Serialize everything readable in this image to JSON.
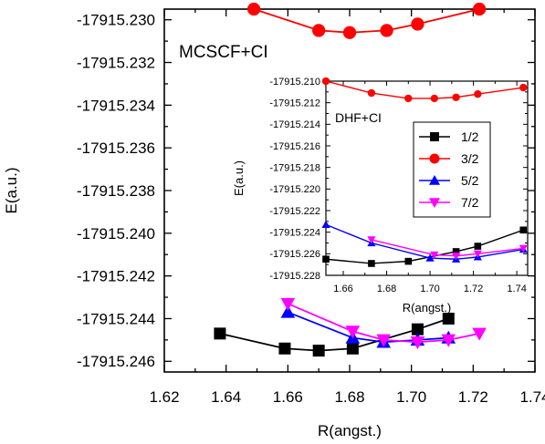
{
  "chart_data": [
    {
      "type": "line",
      "annotation": "MCSCF+CI",
      "xlabel": "R(angst.)",
      "ylabel": "E(a.u.)",
      "xlim": [
        1.62,
        1.74
      ],
      "ylim": [
        -17915.2465,
        -17915.2295
      ],
      "xticks": [
        1.62,
        1.64,
        1.66,
        1.68,
        1.7,
        1.72,
        1.74
      ],
      "xtick_labels": [
        "1.62",
        "1.64",
        "1.66",
        "1.68",
        "1.70",
        "1.72",
        "1.74"
      ],
      "yticks": [
        -17915.23,
        -17915.232,
        -17915.234,
        -17915.236,
        -17915.238,
        -17915.24,
        -17915.242,
        -17915.244,
        -17915.246
      ],
      "ytick_labels": [
        "-17915.230",
        "-17915.232",
        "-17915.234",
        "-17915.236",
        "-17915.238",
        "-17915.240",
        "-17915.242",
        "-17915.244",
        "-17915.246"
      ],
      "grid": false,
      "series": [
        {
          "name": "1/2",
          "color": "#000000",
          "marker": "square",
          "x": [
            1.638,
            1.659,
            1.67,
            1.681,
            1.702,
            1.712
          ],
          "y": [
            -17915.2447,
            -17915.2454,
            -17915.2455,
            -17915.2454,
            -17915.2445,
            -17915.244
          ]
        },
        {
          "name": "3/2",
          "color": "#ff0000",
          "marker": "circle",
          "x": [
            1.649,
            1.67,
            1.68,
            1.692,
            1.702,
            1.722
          ],
          "y": [
            -17915.2295,
            -17915.2305,
            -17915.2306,
            -17915.2305,
            -17915.2302,
            -17915.2295
          ]
        },
        {
          "name": "5/2",
          "color": "#0000ff",
          "marker": "triangle-up",
          "x": [
            1.66,
            1.681,
            1.691,
            1.702,
            1.712
          ],
          "y": [
            -17915.2437,
            -17915.2449,
            -17915.2451,
            -17915.245,
            -17915.2449
          ]
        },
        {
          "name": "7/2",
          "color": "#ff00ff",
          "marker": "triangle-down",
          "x": [
            1.66,
            1.681,
            1.691,
            1.702,
            1.712,
            1.722
          ],
          "y": [
            -17915.2433,
            -17915.2446,
            -17915.245,
            -17915.2451,
            -17915.245,
            -17915.2447
          ]
        }
      ]
    },
    {
      "type": "line",
      "annotation": "DHF+CI",
      "xlabel": "R(angst.)",
      "ylabel": "E(a.u.)",
      "xlim": [
        1.652,
        1.745
      ],
      "ylim": [
        -17915.228,
        -17915.21
      ],
      "xticks": [
        1.66,
        1.68,
        1.7,
        1.72,
        1.74
      ],
      "xtick_labels": [
        "1.66",
        "1.68",
        "1.70",
        "1.72",
        "1.74"
      ],
      "yticks": [
        -17915.21,
        -17915.212,
        -17915.214,
        -17915.216,
        -17915.218,
        -17915.22,
        -17915.222,
        -17915.224,
        -17915.226,
        -17915.228
      ],
      "ytick_labels": [
        "-17915.210",
        "-17915.212",
        "-17915.214",
        "-17915.216",
        "-17915.218",
        "-17915.220",
        "-17915.222",
        "-17915.224",
        "-17915.226",
        "-17915.228"
      ],
      "grid": false,
      "legend_position": "top-right",
      "series": [
        {
          "name": "1/2",
          "color": "#000000",
          "marker": "square",
          "x": [
            1.652,
            1.673,
            1.69,
            1.712,
            1.722,
            1.743
          ],
          "y": [
            -17915.2265,
            -17915.2269,
            -17915.2267,
            -17915.2258,
            -17915.2253,
            -17915.2238
          ]
        },
        {
          "name": "3/2",
          "color": "#ff0000",
          "marker": "circle",
          "x": [
            1.652,
            1.673,
            1.69,
            1.702,
            1.712,
            1.722,
            1.743
          ],
          "y": [
            -17915.21,
            -17915.2111,
            -17915.2116,
            -17915.2116,
            -17915.2115,
            -17915.2112,
            -17915.2106
          ]
        },
        {
          "name": "5/2",
          "color": "#0000ff",
          "marker": "triangle-up",
          "x": [
            1.652,
            1.673,
            1.7,
            1.712,
            1.722,
            1.743
          ],
          "y": [
            -17915.2233,
            -17915.225,
            -17915.2264,
            -17915.2265,
            -17915.2263,
            -17915.2256
          ]
        },
        {
          "name": "7/2",
          "color": "#ff00ff",
          "marker": "triangle-down",
          "x": [
            1.673,
            1.702,
            1.712,
            1.722,
            1.743
          ],
          "y": [
            -17915.2247,
            -17915.2261,
            -17915.2262,
            -17915.226,
            -17915.2255
          ]
        }
      ]
    }
  ]
}
